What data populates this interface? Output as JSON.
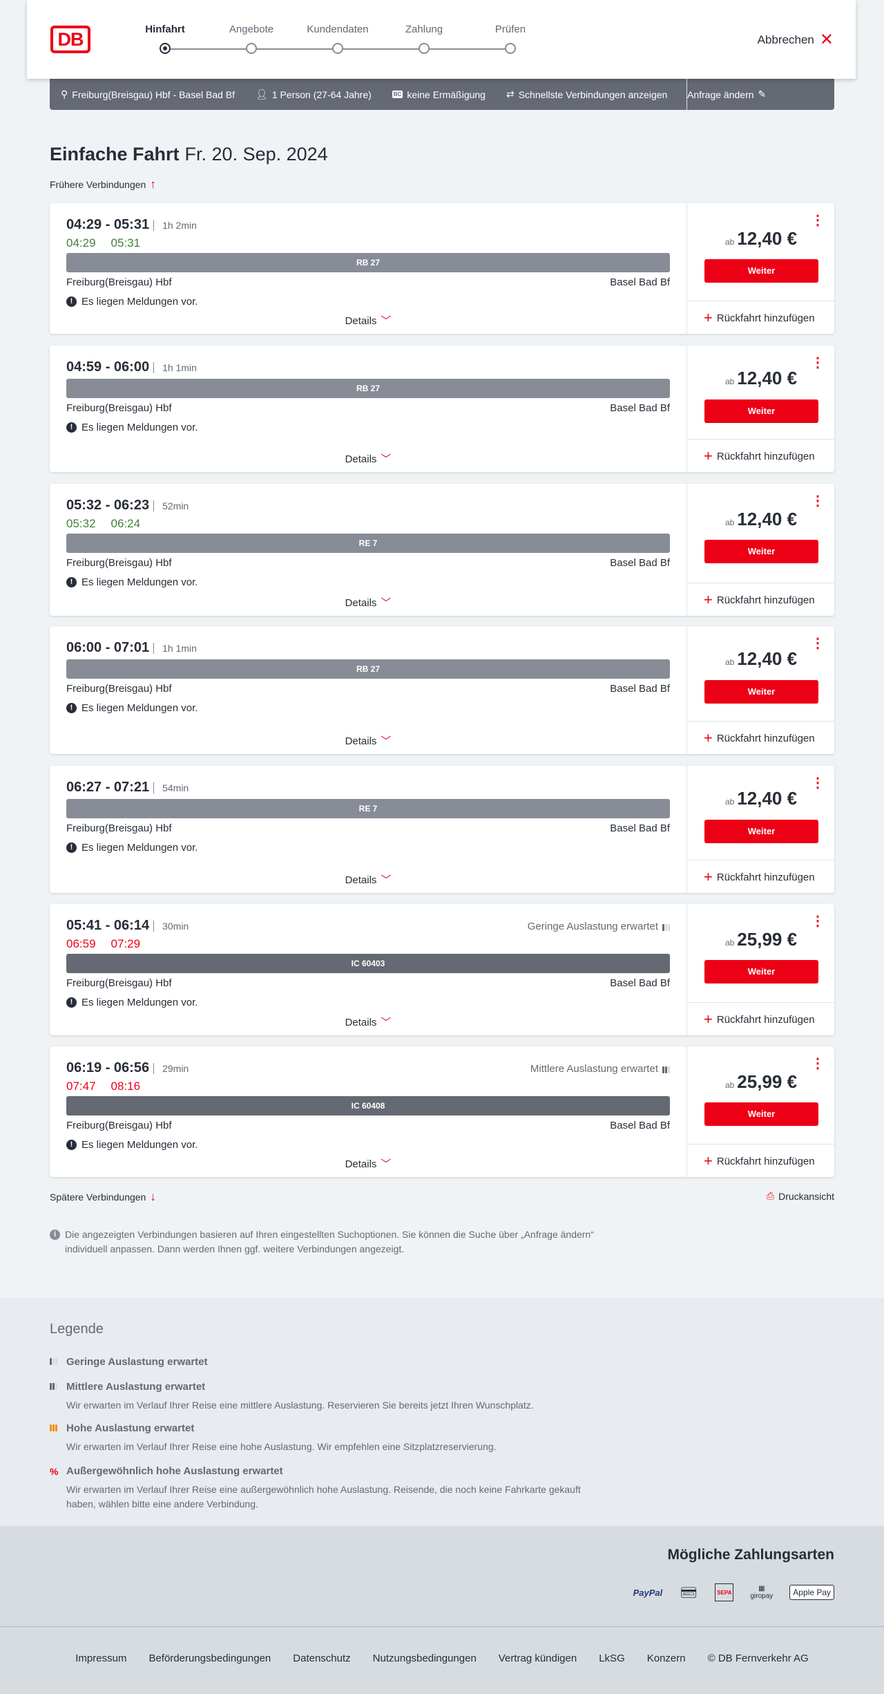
{
  "header": {
    "logo": "DB",
    "steps": [
      {
        "label": "Hinfahrt",
        "active": true
      },
      {
        "label": "Angebote"
      },
      {
        "label": "Kundendaten"
      },
      {
        "label": "Zahlung"
      },
      {
        "label": "Prüfen"
      }
    ],
    "cancel_label": "Abbrechen"
  },
  "query": {
    "route": "Freiburg(Breisgau) Hbf - Basel Bad Bf",
    "travellers": "1 Person (27-64 Jahre)",
    "discount": "keine Ermäßigung",
    "option": "Schnellste Verbindungen anzeigen",
    "change": "Anfrage ändern"
  },
  "page": {
    "title": "Einfache Fahrt",
    "date": "Fr. 20. Sep. 2024",
    "earlier": "Frühere Verbindungen",
    "later": "Spätere Verbindungen",
    "print": "Druckansicht",
    "info": "Die angezeigten Verbindungen basieren auf Ihren eingestellten Suchoptionen. Sie können die Suche über „Anfrage ändern“ individuell anpassen. Dann werden Ihnen ggf. weitere Verbindungen angezeigt."
  },
  "common": {
    "from": "Freiburg(Breisgau) Hbf",
    "to": "Basel Bad Bf",
    "message": "Es liegen Meldungen vor.",
    "details": "Details",
    "price_prefix": "ab",
    "weiter": "Weiter",
    "return": "Rückfahrt hinzufügen"
  },
  "colors": {
    "accent": "#ec0016",
    "ontime": "#408335",
    "delay": "#ec0016",
    "regional": "#878c96",
    "ic": "#646973"
  },
  "connections": [
    {
      "times": "04:29 - 05:31",
      "duration": "1h 2min",
      "rt_dep": "04:29",
      "rt_arr": "05:31",
      "rt_status": "ontime",
      "train": "RB 27",
      "price": "12,40 €"
    },
    {
      "times": "04:59 - 06:00",
      "duration": "1h 1min",
      "train": "RB 27",
      "price": "12,40 €"
    },
    {
      "times": "05:32 - 06:23",
      "duration": "52min",
      "rt_dep": "05:32",
      "rt_arr": "06:24",
      "rt_status": "ontime",
      "train": "RE 7",
      "price": "12,40 €"
    },
    {
      "times": "06:00 - 07:01",
      "duration": "1h 1min",
      "train": "RB 27",
      "price": "12,40 €"
    },
    {
      "times": "06:27 - 07:21",
      "duration": "54min",
      "train": "RE 7",
      "price": "12,40 €"
    },
    {
      "times": "05:41 - 06:14",
      "duration": "30min",
      "rt_dep": "06:59",
      "rt_arr": "07:29",
      "rt_status": "delay",
      "train": "IC 60403",
      "price": "25,99 €",
      "occupancy": "Geringe Auslastung erwartet",
      "occ_level": 1
    },
    {
      "times": "06:19 - 06:56",
      "duration": "29min",
      "rt_dep": "07:47",
      "rt_arr": "08:16",
      "rt_status": "delay",
      "train": "IC 60408",
      "price": "25,99 €",
      "occupancy": "Mittlere Auslastung erwartet",
      "occ_level": 2
    }
  ],
  "legend": {
    "title": "Legende",
    "items": [
      {
        "title": "Geringe Auslastung erwartet",
        "level": 1
      },
      {
        "title": "Mittlere Auslastung erwartet",
        "text": "Wir erwarten im Verlauf Ihrer Reise eine mittlere Auslastung. Reservieren Sie bereits jetzt Ihren Wunschplatz.",
        "level": 2
      },
      {
        "title": "Hohe Auslastung erwartet",
        "text": "Wir erwarten im Verlauf Ihrer Reise eine hohe Auslastung. Wir empfehlen eine Sitzplatzreservierung.",
        "level": 3
      },
      {
        "title": "Außergewöhnlich hohe Auslastung erwartet",
        "text": "Wir erwarten im Verlauf Ihrer Reise eine außergewöhnlich hohe Auslastung. Reisende, die noch keine Fahrkarte gekauft haben, wählen bitte eine andere Verbindung.",
        "level": 4
      }
    ]
  },
  "payment": {
    "title": "Mögliche Zahlungsarten",
    "methods": [
      "PayPal",
      "Kreditkarte",
      "SEPA",
      "giropay",
      "Apple Pay"
    ]
  },
  "footer": {
    "links": [
      "Impressum",
      "Beförderungsbedingungen",
      "Datenschutz",
      "Nutzungsbedingungen",
      "Vertrag kündigen",
      "LkSG",
      "Konzern",
      "© DB Fernverkehr AG"
    ]
  }
}
